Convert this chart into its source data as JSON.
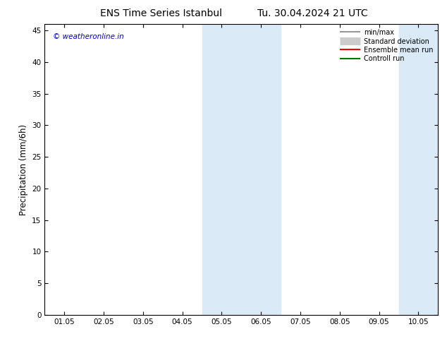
{
  "title_left": "ENS Time Series Istanbul",
  "title_right": "Tu. 30.04.2024 21 UTC",
  "ylabel": "Precipitation (mm/6h)",
  "xlim": [
    -0.5,
    9.5
  ],
  "ylim": [
    0,
    46
  ],
  "yticks": [
    0,
    5,
    10,
    15,
    20,
    25,
    30,
    35,
    40,
    45
  ],
  "xtick_labels": [
    "01.05",
    "02.05",
    "03.05",
    "04.05",
    "05.05",
    "06.05",
    "07.05",
    "08.05",
    "09.05",
    "10.05"
  ],
  "xtick_positions": [
    0,
    1,
    2,
    3,
    4,
    5,
    6,
    7,
    8,
    9
  ],
  "shaded_bands": [
    {
      "x_start": 3.5,
      "x_end": 5.5
    },
    {
      "x_start": 8.5,
      "x_end": 9.5
    }
  ],
  "shade_color": "#daeaf7",
  "background_color": "#ffffff",
  "watermark_text": "© weatheronline.in",
  "watermark_color": "#0000cc",
  "legend_items": [
    {
      "label": "min/max",
      "color": "#999999",
      "lw": 1.5,
      "type": "line"
    },
    {
      "label": "Standard deviation",
      "color": "#cccccc",
      "lw": 8,
      "type": "line"
    },
    {
      "label": "Ensemble mean run",
      "color": "#ff0000",
      "lw": 1.5,
      "type": "line"
    },
    {
      "label": "Controll run",
      "color": "#007700",
      "lw": 1.5,
      "type": "line"
    }
  ],
  "title_fontsize": 10,
  "tick_fontsize": 7.5,
  "ylabel_fontsize": 8.5
}
